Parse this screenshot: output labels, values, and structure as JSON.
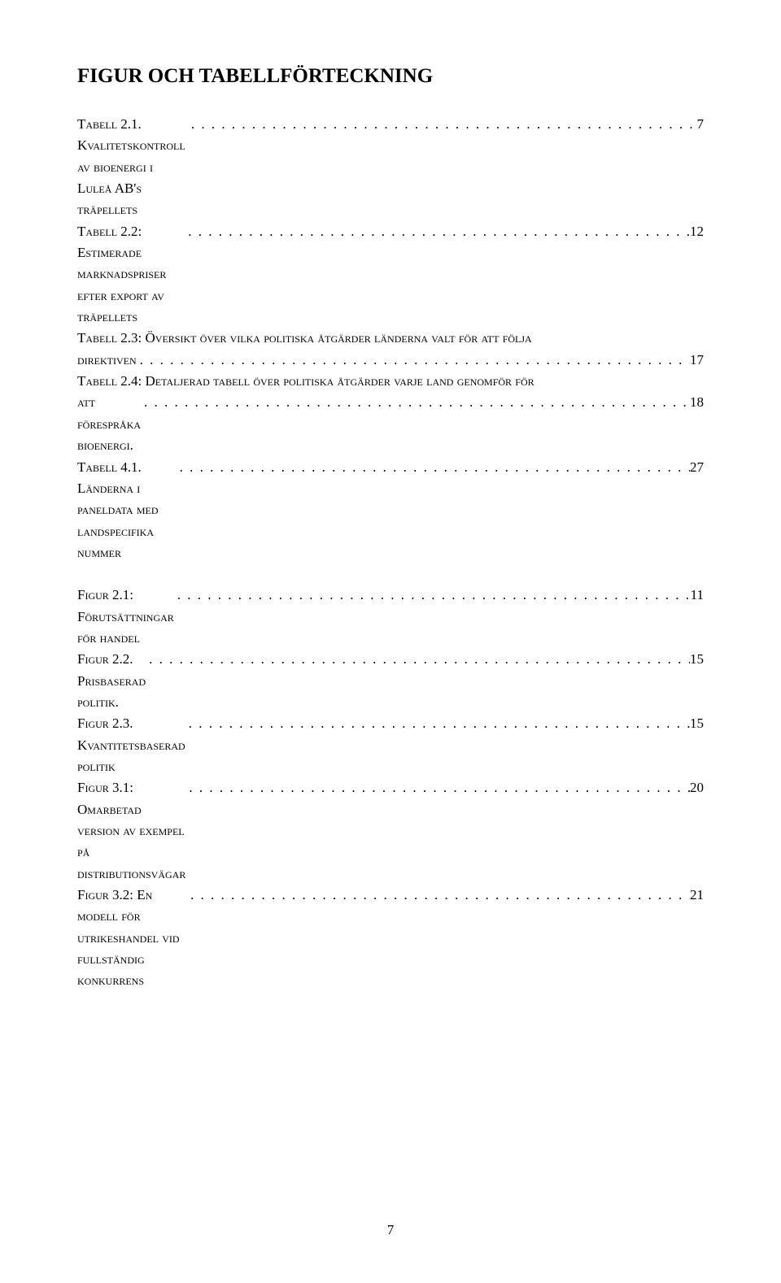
{
  "title": "FIGUR OCH TABELLFÖRTECKNING",
  "tables": [
    {
      "label": "Tabell 2.1. Kvalitetskontroll av bioenergi i Luleå AB's träpellets",
      "page": "7"
    },
    {
      "label": "Tabell 2.2: Estimerade marknadspriser efter export av träpellets",
      "page": "12"
    },
    {
      "label_line1": "Tabell 2.3: Översikt över vilka politiska åtgärder länderna valt för att följa",
      "label_line2": "direktiven",
      "page": "17",
      "multiline": true
    },
    {
      "label_line1": "Tabell 2.4: Detaljerad tabell över politiska åtgärder varje land genomför för",
      "label_line2": "att förespråka bioenergi.",
      "page": "18",
      "multiline": true
    },
    {
      "label": "Tabell 4.1. Länderna i paneldata med landspecifika nummer",
      "page": "27"
    }
  ],
  "figures": [
    {
      "label": "Figur 2.1: Förutsättningar för handel",
      "page": "11"
    },
    {
      "label": "Figur 2.2. Prisbaserad politik.",
      "page": "15"
    },
    {
      "label": "Figur 2.3. Kvantitetsbaserad politik",
      "page": "15"
    },
    {
      "label": "Figur 3.1: Omarbetad version av exempel på distributionsvägar",
      "page": "20"
    },
    {
      "label": "Figur 3.2: En modell för utrikeshandel vid fullständig konkurrens",
      "page": "21"
    }
  ],
  "page_number": "7",
  "leader_dots": ". . . . . . . . . . . . . . . . . . . . . . . . . . . . . . . . . . . . . . . . . . . . . . . . . . . . . . . . . . . . . . . . . . . . . . . . . . . . . . . . . . . . . . . . . . . . . . . . . . . . . . . . . . . . . . . . . . . . . . . . . . . . . . . . . . . . . . . . . . . . . . . . . . . . . . . . . . . . . . . . . . . . . . . . . . . . ."
}
